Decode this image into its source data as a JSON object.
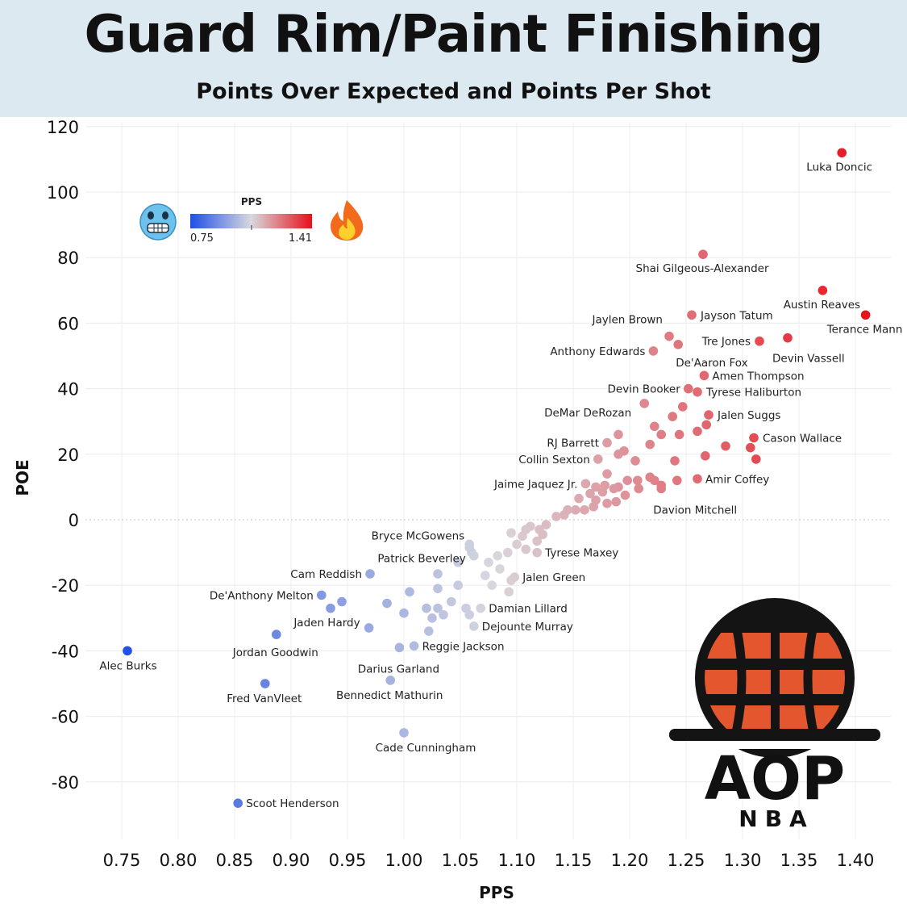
{
  "header": {
    "title": "Guard Rim/Paint Finishing",
    "subtitle": "Points Over Expected and Points Per Shot"
  },
  "legend": {
    "title": "PPS",
    "min_label": "0.75",
    "max_label": "1.41",
    "color_low": "#1f4fe6",
    "color_mid": "#d8d8de",
    "color_high": "#e8101a",
    "left_icon": "cold-face-emoji-icon",
    "right_icon": "fire-emoji-icon"
  },
  "logo": {
    "main_text": "AOP",
    "sub_text": "NBA",
    "ball_color": "#e4572e",
    "dark_color": "#141414"
  },
  "chart_data": {
    "type": "scatter",
    "title": "Guard Rim/Paint Finishing",
    "subtitle": "Points Over Expected and Points Per Shot",
    "xlabel": "PPS",
    "ylabel": "POE",
    "xlim": [
      0.72,
      1.43
    ],
    "ylim": [
      -98,
      122
    ],
    "xticks": [
      "0.75",
      "0.80",
      "0.85",
      "0.90",
      "0.95",
      "1.00",
      "1.05",
      "1.10",
      "1.15",
      "1.20",
      "1.25",
      "1.30",
      "1.35",
      "1.40"
    ],
    "yticks": [
      "120",
      "100",
      "80",
      "60",
      "40",
      "20",
      "0",
      "-20",
      "-40",
      "-60",
      "-80"
    ],
    "grid": true,
    "color_by": "x",
    "color_range": [
      0.75,
      1.41
    ],
    "labeled_points": [
      {
        "name": "Luka Doncic",
        "x": 1.388,
        "y": 112
      },
      {
        "name": "Shai Gilgeous-Alexander",
        "x": 1.265,
        "y": 81
      },
      {
        "name": "Austin Reaves",
        "x": 1.371,
        "y": 70
      },
      {
        "name": "Terance Mann",
        "x": 1.409,
        "y": 62.5
      },
      {
        "name": "Jayson Tatum",
        "x": 1.255,
        "y": 62.5
      },
      {
        "name": "Jaylen Brown",
        "x": 1.235,
        "y": 56
      },
      {
        "name": "Tre Jones",
        "x": 1.315,
        "y": 54.5
      },
      {
        "name": "Devin Vassell",
        "x": 1.34,
        "y": 55.5
      },
      {
        "name": "Anthony Edwards",
        "x": 1.221,
        "y": 51.5
      },
      {
        "name": "De'Aaron Fox",
        "x": 1.243,
        "y": 53.5
      },
      {
        "name": "Amen Thompson",
        "x": 1.266,
        "y": 44
      },
      {
        "name": "Devin Booker",
        "x": 1.252,
        "y": 40
      },
      {
        "name": "Tyrese Haliburton",
        "x": 1.26,
        "y": 39
      },
      {
        "name": "DeMar DeRozan",
        "x": 1.213,
        "y": 35.5
      },
      {
        "name": "Jalen Suggs",
        "x": 1.27,
        "y": 32
      },
      {
        "name": "Cason Wallace",
        "x": 1.31,
        "y": 25
      },
      {
        "name": "RJ Barrett",
        "x": 1.18,
        "y": 23.5
      },
      {
        "name": "Collin Sexton",
        "x": 1.172,
        "y": 18.5
      },
      {
        "name": "Amir Coffey",
        "x": 1.26,
        "y": 12.5
      },
      {
        "name": "Jaime Jaquez Jr.",
        "x": 1.161,
        "y": 11
      },
      {
        "name": "Davion Mitchell",
        "x": 1.228,
        "y": 9.5
      },
      {
        "name": "Bryce McGowens",
        "x": 1.058,
        "y": -7.5
      },
      {
        "name": "Patrick Beverley",
        "x": 1.062,
        "y": -11
      },
      {
        "name": "Tyrese Maxey",
        "x": 1.118,
        "y": -10
      },
      {
        "name": "Cam Reddish",
        "x": 0.97,
        "y": -16.5
      },
      {
        "name": "Jalen Green",
        "x": 1.098,
        "y": -17.5
      },
      {
        "name": "De'Anthony Melton",
        "x": 0.927,
        "y": -23
      },
      {
        "name": "Damian Lillard",
        "x": 1.068,
        "y": -27
      },
      {
        "name": "Jaden Hardy",
        "x": 0.969,
        "y": -33
      },
      {
        "name": "Dejounte Murray",
        "x": 1.062,
        "y": -32.5
      },
      {
        "name": "Jordan Goodwin",
        "x": 0.887,
        "y": -35
      },
      {
        "name": "Reggie Jackson",
        "x": 1.009,
        "y": -38.5
      },
      {
        "name": "Alec Burks",
        "x": 0.755,
        "y": -40
      },
      {
        "name": "Darius Garland",
        "x": 0.996,
        "y": -39
      },
      {
        "name": "Fred VanVleet",
        "x": 0.877,
        "y": -50
      },
      {
        "name": "Bennedict Mathurin",
        "x": 0.988,
        "y": -49
      },
      {
        "name": "Cade Cunningham",
        "x": 1.0,
        "y": -65
      },
      {
        "name": "Scoot Henderson",
        "x": 0.853,
        "y": -86.5
      }
    ],
    "other_points": [
      [
        1.285,
        22.5
      ],
      [
        1.307,
        22
      ],
      [
        1.312,
        18.5
      ],
      [
        1.268,
        29
      ],
      [
        1.26,
        27
      ],
      [
        1.244,
        26
      ],
      [
        1.228,
        26
      ],
      [
        1.218,
        23
      ],
      [
        1.195,
        21
      ],
      [
        1.19,
        20
      ],
      [
        1.205,
        18
      ],
      [
        1.24,
        18
      ],
      [
        1.267,
        19.5
      ],
      [
        1.247,
        34.5
      ],
      [
        1.238,
        31.5
      ],
      [
        1.222,
        28.5
      ],
      [
        1.19,
        26
      ],
      [
        1.18,
        14
      ],
      [
        1.17,
        10
      ],
      [
        1.178,
        10.5
      ],
      [
        1.19,
        10
      ],
      [
        1.198,
        12
      ],
      [
        1.207,
        12
      ],
      [
        1.218,
        13
      ],
      [
        1.222,
        12
      ],
      [
        1.242,
        12
      ],
      [
        1.228,
        10.5
      ],
      [
        1.165,
        8
      ],
      [
        1.176,
        8.5
      ],
      [
        1.186,
        9.5
      ],
      [
        1.196,
        7.5
      ],
      [
        1.208,
        9.5
      ],
      [
        1.17,
        6
      ],
      [
        1.18,
        5
      ],
      [
        1.188,
        5.5
      ],
      [
        1.155,
        6.5
      ],
      [
        1.16,
        3
      ],
      [
        1.168,
        4
      ],
      [
        1.152,
        3
      ],
      [
        1.145,
        3
      ],
      [
        1.142,
        1.5
      ],
      [
        1.135,
        1
      ],
      [
        1.126,
        -1.5
      ],
      [
        1.12,
        -3
      ],
      [
        1.112,
        -2
      ],
      [
        1.105,
        -5
      ],
      [
        1.108,
        -3
      ],
      [
        1.118,
        -6.5
      ],
      [
        1.123,
        -4.5
      ],
      [
        1.095,
        -4
      ],
      [
        1.1,
        -7.5
      ],
      [
        1.108,
        -9
      ],
      [
        1.092,
        -10
      ],
      [
        1.083,
        -11
      ],
      [
        1.075,
        -13
      ],
      [
        1.085,
        -15
      ],
      [
        1.06,
        -10
      ],
      [
        1.058,
        -8.5
      ],
      [
        1.048,
        -13
      ],
      [
        1.072,
        -17
      ],
      [
        1.078,
        -20
      ],
      [
        1.093,
        -22
      ],
      [
        1.095,
        -18.5
      ],
      [
        1.048,
        -20
      ],
      [
        1.03,
        -16.5
      ],
      [
        1.03,
        -21
      ],
      [
        1.005,
        -22
      ],
      [
        1.02,
        -27
      ],
      [
        1.03,
        -27
      ],
      [
        1.042,
        -25
      ],
      [
        1.055,
        -27
      ],
      [
        1.058,
        -29
      ],
      [
        1.035,
        -29
      ],
      [
        1.025,
        -30
      ],
      [
        1.0,
        -28.5
      ],
      [
        0.985,
        -25.5
      ],
      [
        0.945,
        -25
      ],
      [
        0.935,
        -27
      ],
      [
        1.022,
        -34
      ]
    ]
  }
}
